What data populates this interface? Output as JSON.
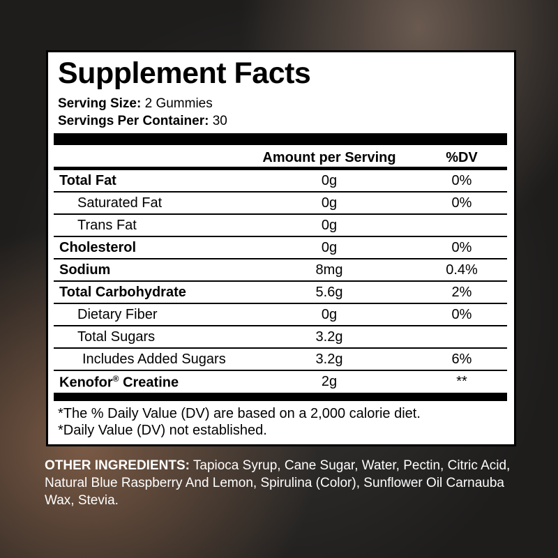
{
  "title": "Supplement Facts",
  "serving_size_label": "Serving Size:",
  "serving_size": "2 Gummies",
  "servings_label": "Servings Per Container:",
  "servings": "30",
  "header": {
    "amount": "Amount per Serving",
    "dv": "%DV"
  },
  "rows": [
    {
      "label": "Total Fat",
      "amount": "0g",
      "dv": "0%"
    },
    {
      "label": "Saturated Fat",
      "amount": "0g",
      "dv": "0%"
    },
    {
      "label": "Trans Fat",
      "amount": "0g",
      "dv": ""
    },
    {
      "label": "Cholesterol",
      "amount": "0g",
      "dv": "0%"
    },
    {
      "label": "Sodium",
      "amount": "8mg",
      "dv": "0.4%"
    },
    {
      "label": "Total Carbohydrate",
      "amount": "5.6g",
      "dv": "2%"
    },
    {
      "label": "Dietary Fiber",
      "amount": "0g",
      "dv": "0%"
    },
    {
      "label": "Total Sugars",
      "amount": "3.2g",
      "dv": ""
    },
    {
      "label": "Includes Added Sugars",
      "amount": "3.2g",
      "dv": "6%"
    },
    {
      "label": "Kenofor",
      "label_mark": "®",
      "label_suffix": " Creatine",
      "amount": "2g",
      "dv": "**"
    }
  ],
  "footnotes": [
    "*The % Daily Value (DV) are based on a 2,000 calorie diet.",
    "*Daily Value (DV) not established."
  ],
  "other_ingredients": {
    "label": "OTHER INGREDIENTS:",
    "text": " Tapioca Syrup, Cane Sugar, Water, Pectin, Citric Acid, Natural Blue Raspberry And Lemon, Spirulina (Color), Sunflower Oil Carnauba Wax, Stevia."
  }
}
